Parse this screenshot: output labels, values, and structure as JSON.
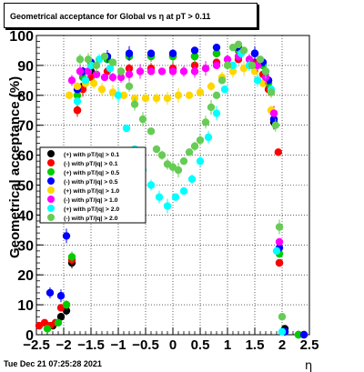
{
  "title": "Geometrical acceptance for Global vs   η at pT > 0.11",
  "timestamp": "Tue Dec 21 07:25:28 2021",
  "chart_data": {
    "type": "scatter",
    "xlabel": "η",
    "ylabel": "Geometrical acceptance (%)",
    "xlim": [
      -2.5,
      2.5
    ],
    "ylim": [
      0,
      100
    ],
    "xticks": [
      "−2.5",
      "−2",
      "−1.5",
      "−1",
      "−0.5",
      "0",
      "0.5",
      "1",
      "1.5",
      "2",
      "2.5"
    ],
    "yticks": [
      "0",
      "10",
      "20",
      "30",
      "40",
      "50",
      "60",
      "70",
      "80",
      "90",
      "100"
    ],
    "grid": true,
    "legend_position": "left",
    "series": [
      {
        "name": "(+) with pT/|q| > 0.1",
        "color": "#000000",
        "points": [
          [
            -2.2,
            3
          ],
          [
            -2.05,
            6
          ],
          [
            -1.95,
            8
          ],
          [
            -1.85,
            24
          ],
          [
            -1.75,
            75
          ],
          [
            -1.65,
            83
          ],
          [
            -1.5,
            88
          ],
          [
            -1.2,
            92
          ],
          [
            -0.8,
            93
          ],
          [
            -0.4,
            93
          ],
          [
            0,
            93
          ],
          [
            0.4,
            93
          ],
          [
            0.8,
            94
          ],
          [
            1.2,
            95
          ],
          [
            1.5,
            94
          ],
          [
            1.65,
            90
          ],
          [
            1.75,
            85
          ],
          [
            1.85,
            71
          ],
          [
            1.95,
            24
          ],
          [
            2.05,
            2
          ],
          [
            2.3,
            0
          ]
        ]
      },
      {
        "name": "(-) with pT/|q| > 0.1",
        "color": "#ff0000",
        "points": [
          [
            -2.45,
            3
          ],
          [
            -2.35,
            4
          ],
          [
            -2.25,
            3
          ],
          [
            -2.15,
            4
          ],
          [
            -2.05,
            9
          ],
          [
            -1.95,
            10
          ],
          [
            -1.85,
            25
          ],
          [
            -1.75,
            75
          ],
          [
            -1.65,
            82
          ],
          [
            -1.5,
            86
          ],
          [
            -1.2,
            88
          ],
          [
            -0.8,
            89
          ],
          [
            -0.4,
            89
          ],
          [
            0,
            89
          ],
          [
            0.4,
            90
          ],
          [
            0.8,
            91
          ],
          [
            1.2,
            92
          ],
          [
            1.5,
            91
          ],
          [
            1.65,
            87
          ],
          [
            1.75,
            82
          ],
          [
            1.85,
            74
          ],
          [
            1.93,
            61
          ],
          [
            1.95,
            24
          ],
          [
            2.05,
            1
          ],
          [
            2.4,
            0
          ]
        ]
      },
      {
        "name": "(+) with pT/|q| > 0.5",
        "color": "#00cc00",
        "points": [
          [
            -2.3,
            2
          ],
          [
            -2.1,
            4
          ],
          [
            -1.95,
            10
          ],
          [
            -1.85,
            26
          ],
          [
            -1.75,
            80
          ],
          [
            -1.65,
            86
          ],
          [
            -1.5,
            90
          ],
          [
            -1.2,
            92
          ],
          [
            -0.8,
            93
          ],
          [
            -0.4,
            93
          ],
          [
            0,
            93
          ],
          [
            0.4,
            93
          ],
          [
            0.8,
            94
          ],
          [
            1.2,
            95
          ],
          [
            1.5,
            94
          ],
          [
            1.65,
            90
          ],
          [
            1.75,
            84
          ],
          [
            1.85,
            72
          ],
          [
            1.95,
            27
          ],
          [
            2.05,
            1
          ],
          [
            2.3,
            0
          ]
        ]
      },
      {
        "name": "(-) with pT/|q| > 0.5",
        "color": "#0000ff",
        "points": [
          [
            -2.25,
            14
          ],
          [
            -2.05,
            13
          ],
          [
            -1.95,
            33
          ],
          [
            -1.85,
            50
          ],
          [
            -1.75,
            82
          ],
          [
            -1.65,
            88
          ],
          [
            -1.5,
            91
          ],
          [
            -1.2,
            93
          ],
          [
            -0.8,
            94
          ],
          [
            -0.4,
            94
          ],
          [
            0,
            94
          ],
          [
            0.4,
            95
          ],
          [
            0.8,
            96
          ],
          [
            1.2,
            96
          ],
          [
            1.5,
            94
          ],
          [
            1.65,
            91
          ],
          [
            1.75,
            85
          ],
          [
            1.85,
            72
          ],
          [
            1.95,
            29
          ],
          [
            2.05,
            1
          ],
          [
            2.4,
            0
          ]
        ]
      },
      {
        "name": "(+) with pT/|q| > 1.0",
        "color": "#ffd700",
        "points": [
          [
            -1.9,
            80
          ],
          [
            -1.75,
            83
          ],
          [
            -1.6,
            84
          ],
          [
            -1.45,
            84
          ],
          [
            -1.3,
            82
          ],
          [
            -1.1,
            81
          ],
          [
            -0.9,
            80
          ],
          [
            -0.7,
            79
          ],
          [
            -0.5,
            79
          ],
          [
            -0.3,
            79
          ],
          [
            -0.1,
            79
          ],
          [
            0.1,
            80
          ],
          [
            0.3,
            80
          ],
          [
            0.5,
            81
          ],
          [
            0.7,
            83
          ],
          [
            0.9,
            86
          ],
          [
            1.1,
            88
          ],
          [
            1.3,
            89
          ],
          [
            1.5,
            88
          ],
          [
            1.65,
            84
          ],
          [
            1.8,
            75
          ]
        ]
      },
      {
        "name": "(-) with pT/|q| > 1.0",
        "color": "#ff00ff",
        "points": [
          [
            -1.85,
            85
          ],
          [
            -1.7,
            88
          ],
          [
            -1.55,
            88
          ],
          [
            -1.4,
            87
          ],
          [
            -1.25,
            86
          ],
          [
            -1.1,
            86
          ],
          [
            -0.95,
            86
          ],
          [
            -0.8,
            87
          ],
          [
            -0.6,
            88
          ],
          [
            -0.4,
            88
          ],
          [
            -0.2,
            88
          ],
          [
            0,
            88
          ],
          [
            0.2,
            88
          ],
          [
            0.4,
            88
          ],
          [
            0.6,
            89
          ],
          [
            0.8,
            90
          ],
          [
            1.0,
            92
          ],
          [
            1.2,
            93
          ],
          [
            1.4,
            92
          ],
          [
            1.55,
            90
          ],
          [
            1.7,
            86
          ],
          [
            1.85,
            74
          ],
          [
            1.95,
            31
          ]
        ]
      },
      {
        "name": "(+) with pT/|q| > 2.0",
        "color": "#00ffff",
        "points": [
          [
            -1.75,
            78
          ],
          [
            -1.6,
            85
          ],
          [
            -1.5,
            90
          ],
          [
            -1.35,
            92
          ],
          [
            -1.15,
            89
          ],
          [
            -1.0,
            80
          ],
          [
            -0.85,
            69
          ],
          [
            -0.7,
            62
          ],
          [
            -0.55,
            55
          ],
          [
            -0.4,
            50
          ],
          [
            -0.25,
            46
          ],
          [
            -0.1,
            43
          ],
          [
            0.05,
            46
          ],
          [
            0.2,
            48
          ],
          [
            0.35,
            52
          ],
          [
            0.5,
            58
          ],
          [
            0.65,
            66
          ],
          [
            0.8,
            74
          ],
          [
            0.95,
            82
          ],
          [
            1.1,
            90
          ],
          [
            1.25,
            94
          ],
          [
            1.4,
            90
          ],
          [
            1.55,
            85
          ],
          [
            1.7,
            88
          ],
          [
            1.8,
            82
          ],
          [
            1.9,
            28
          ],
          [
            2.0,
            1
          ]
        ]
      },
      {
        "name": "(-) with pT/|q| > 2.0",
        "color": "#66cc55",
        "points": [
          [
            -1.7,
            92
          ],
          [
            -1.55,
            92
          ],
          [
            -1.4,
            90
          ],
          [
            -1.25,
            93
          ],
          [
            -1.1,
            91
          ],
          [
            -0.95,
            88
          ],
          [
            -0.8,
            83
          ],
          [
            -0.7,
            77
          ],
          [
            -0.55,
            72
          ],
          [
            -0.4,
            68
          ],
          [
            -0.3,
            62
          ],
          [
            -0.2,
            60
          ],
          [
            -0.1,
            57
          ],
          [
            0,
            56
          ],
          [
            0.1,
            55
          ],
          [
            0.2,
            58
          ],
          [
            0.3,
            61
          ],
          [
            0.4,
            63
          ],
          [
            0.5,
            65
          ],
          [
            0.6,
            71
          ],
          [
            0.7,
            76
          ],
          [
            0.8,
            80
          ],
          [
            0.9,
            85
          ],
          [
            1.0,
            90
          ],
          [
            1.1,
            96
          ],
          [
            1.2,
            97
          ],
          [
            1.3,
            95
          ],
          [
            1.45,
            90
          ],
          [
            1.6,
            92
          ],
          [
            1.7,
            88
          ],
          [
            1.8,
            81
          ],
          [
            1.88,
            70
          ],
          [
            1.95,
            36
          ],
          [
            2.0,
            6
          ]
        ]
      }
    ]
  }
}
